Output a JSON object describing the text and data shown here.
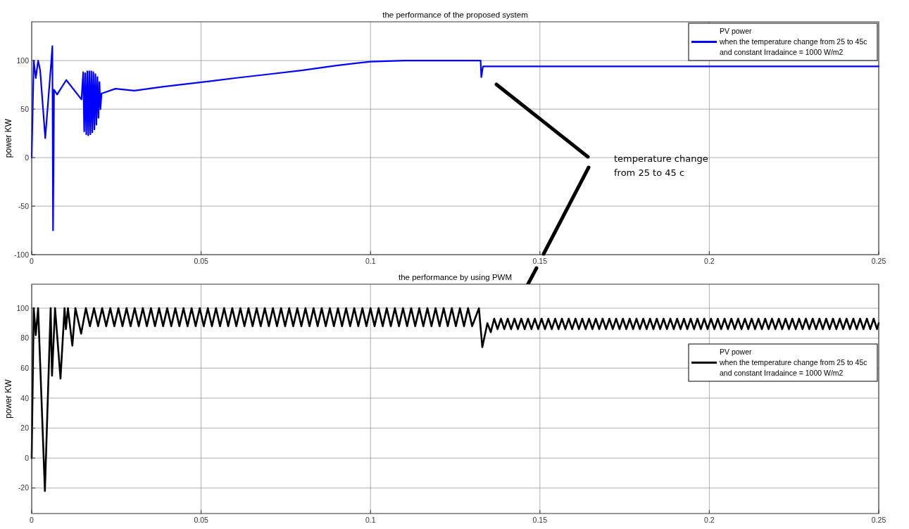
{
  "chart_data": [
    {
      "type": "line",
      "title": "the performance of the proposed system",
      "ylabel": "power KW",
      "xlim": [
        0,
        0.25
      ],
      "xticks": [
        0,
        0.05,
        0.1,
        0.15,
        0.2,
        0.25
      ],
      "ylim": [
        -100,
        140
      ],
      "yticks": [
        -100,
        -50,
        0,
        50,
        100
      ],
      "grid": true,
      "legend": "top right",
      "line_style": "solid",
      "marker": "none",
      "annotations": [
        "temperature change\nfrom 25 to 45 c"
      ],
      "series": [
        {
          "name": "PV power\nwhen the temperature change from 25 to 45c\nand constant Irradaince = 1000 W/m2",
          "color": "#0000ff",
          "x": [
            0,
            0.0006,
            0.0012,
            0.0019,
            0.0025,
            0.004,
            0.0058,
            0.0061,
            0.0063,
            0.0066,
            0.0075,
            0.0102,
            0.0147,
            0.0152,
            0.0155,
            0.0158,
            0.0161,
            0.0164,
            0.0167,
            0.017,
            0.0173,
            0.0176,
            0.0179,
            0.0182,
            0.0185,
            0.0188,
            0.0191,
            0.0194,
            0.0197,
            0.02,
            0.0203,
            0.0206,
            0.0247,
            0.0303,
            0.0386,
            0.0532,
            0.06,
            0.07,
            0.08,
            0.09,
            0.1,
            0.11,
            0.12,
            0.1325,
            0.1327,
            0.1332,
            0.25
          ],
          "values": [
            0,
            100,
            82,
            100,
            90,
            20,
            100,
            115,
            -75,
            70,
            65,
            80,
            60,
            88,
            27,
            87,
            24,
            89,
            23,
            89,
            24,
            89,
            26,
            88,
            29,
            86,
            34,
            83,
            41,
            78,
            50,
            66,
            71,
            69,
            73,
            79,
            82,
            86,
            90,
            95,
            99,
            100,
            100,
            100,
            83,
            94,
            94
          ]
        }
      ]
    },
    {
      "type": "line",
      "title": "the performance by using PWM",
      "ylabel": "power KW",
      "xlim": [
        0,
        0.25
      ],
      "xticks": [
        0,
        0.05,
        0.1,
        0.15,
        0.2,
        0.25
      ],
      "ylim": [
        -37,
        116
      ],
      "yticks": [
        -20,
        0,
        20,
        40,
        60,
        80,
        100
      ],
      "grid": true,
      "legend": "right",
      "line_style": "solid",
      "marker": "none",
      "series": [
        {
          "name": "PV power\nwhen the temperature change from 25 to 45c\nand constant Irradaince = 1000 W/m2",
          "color": "#000000",
          "x": [
            0,
            0.0006,
            0.0012,
            0.0019,
            0.0039,
            0.0056,
            0.006,
            0.0069,
            0.0085,
            0.0097,
            0.0101,
            0.0107,
            0.012,
            0.0129,
            0.0146,
            0.016,
            0.0172,
            0.0184,
            0.0196,
            0.0208,
            0.022,
            0.0232,
            0.0244,
            0.0256,
            0.0268,
            0.028,
            0.0292,
            0.0304,
            0.0316,
            0.0328,
            0.034,
            0.0352,
            0.0364,
            0.0376,
            0.0388,
            0.04,
            0.0412,
            0.0424,
            0.0436,
            0.0448,
            0.046,
            0.0472,
            0.0484,
            0.0496,
            0.0508,
            0.052,
            0.0532,
            0.0544,
            0.0556,
            0.0568,
            0.058,
            0.0592,
            0.0604,
            0.0616,
            0.0628,
            0.064,
            0.0652,
            0.0664,
            0.0676,
            0.0688,
            0.07,
            0.0712,
            0.0724,
            0.0736,
            0.0748,
            0.076,
            0.0772,
            0.0784,
            0.0796,
            0.0808,
            0.082,
            0.0832,
            0.0844,
            0.0856,
            0.0868,
            0.088,
            0.0892,
            0.0904,
            0.0916,
            0.0928,
            0.094,
            0.0952,
            0.0964,
            0.0976,
            0.0988,
            0.1,
            0.1012,
            0.1024,
            0.1036,
            0.1048,
            0.106,
            0.1072,
            0.1084,
            0.1096,
            0.1108,
            0.112,
            0.1132,
            0.1144,
            0.1156,
            0.1168,
            0.118,
            0.1192,
            0.1204,
            0.1216,
            0.1228,
            0.124,
            0.1252,
            0.1264,
            0.1276,
            0.1288,
            0.13,
            0.132,
            0.133,
            0.1345,
            0.1355,
            0.1365,
            0.1375,
            0.1385,
            0.1395,
            0.1405,
            0.1415,
            0.1425,
            0.1435,
            0.1445,
            0.1455,
            0.1465,
            0.1475,
            0.1485,
            0.1495,
            0.1505,
            0.1515,
            0.1525,
            0.1535,
            0.1545,
            0.1555,
            0.1565,
            0.1575,
            0.1585,
            0.1595,
            0.1605,
            0.1615,
            0.1625,
            0.1635,
            0.1645,
            0.1655,
            0.1665,
            0.1675,
            0.1685,
            0.1695,
            0.1705,
            0.1715,
            0.1725,
            0.1735,
            0.1745,
            0.1755,
            0.1765,
            0.1775,
            0.1785,
            0.1795,
            0.1805,
            0.1815,
            0.1825,
            0.1835,
            0.1845,
            0.1855,
            0.1865,
            0.1875,
            0.1885,
            0.1895,
            0.1905,
            0.1915,
            0.1925,
            0.1935,
            0.1945,
            0.1955,
            0.1965,
            0.1975,
            0.1985,
            0.1995,
            0.2005,
            0.2015,
            0.2025,
            0.2035,
            0.2045,
            0.2055,
            0.2065,
            0.2075,
            0.2085,
            0.2095,
            0.2105,
            0.2115,
            0.2125,
            0.2135,
            0.2145,
            0.2155,
            0.2165,
            0.2175,
            0.2185,
            0.2195,
            0.2205,
            0.2215,
            0.2225,
            0.2235,
            0.2245,
            0.2255,
            0.2265,
            0.2275,
            0.2285,
            0.2295,
            0.2305,
            0.2315,
            0.2325,
            0.2335,
            0.2345,
            0.2355,
            0.2365,
            0.2375,
            0.2385,
            0.2395,
            0.2405,
            0.2415,
            0.2425,
            0.2435,
            0.2445,
            0.2455,
            0.2465,
            0.2475,
            0.2485,
            0.2495,
            0.25
          ],
          "values": [
            0,
            100,
            82,
            100,
            -22,
            100,
            55,
            100,
            53,
            100,
            86,
            100,
            75,
            100,
            83,
            100,
            88,
            100,
            88,
            100,
            88,
            100,
            88,
            100,
            88,
            100,
            88,
            100,
            88,
            100,
            88,
            100,
            88,
            100,
            88,
            100,
            88,
            100,
            88,
            100,
            88,
            100,
            88,
            100,
            88,
            100,
            88,
            100,
            88,
            100,
            88,
            100,
            88,
            100,
            88,
            100,
            88,
            100,
            88,
            100,
            88,
            100,
            88,
            100,
            88,
            100,
            88,
            100,
            88,
            100,
            88,
            100,
            88,
            100,
            88,
            100,
            88,
            100,
            88,
            100,
            88,
            100,
            88,
            100,
            88,
            100,
            88,
            100,
            88,
            100,
            88,
            100,
            88,
            100,
            88,
            100,
            88,
            100,
            88,
            100,
            88,
            100,
            88,
            100,
            88,
            100,
            88,
            100,
            88,
            100,
            88,
            100,
            74,
            90,
            84,
            93,
            86,
            93,
            86,
            93,
            86,
            93,
            86,
            93,
            86,
            93,
            86,
            93,
            86,
            93,
            86,
            93,
            86,
            93,
            86,
            93,
            86,
            93,
            86,
            93,
            86,
            93,
            86,
            93,
            86,
            93,
            86,
            93,
            86,
            93,
            86,
            93,
            86,
            93,
            86,
            93,
            86,
            93,
            86,
            93,
            86,
            93,
            86,
            93,
            86,
            93,
            86,
            93,
            86,
            93,
            86,
            93,
            86,
            93,
            86,
            93,
            86,
            93,
            86,
            93,
            86,
            93,
            86,
            93,
            86,
            93,
            86,
            93,
            86,
            93,
            86,
            93,
            86,
            93,
            86,
            93,
            86,
            93,
            86,
            93,
            86,
            93,
            86,
            93,
            86,
            93,
            86,
            93,
            86,
            93,
            86,
            93,
            86,
            93,
            86,
            93,
            86,
            93,
            86,
            93,
            86,
            93,
            86,
            93,
            86,
            93,
            86,
            93,
            86,
            90
          ]
        }
      ]
    }
  ]
}
